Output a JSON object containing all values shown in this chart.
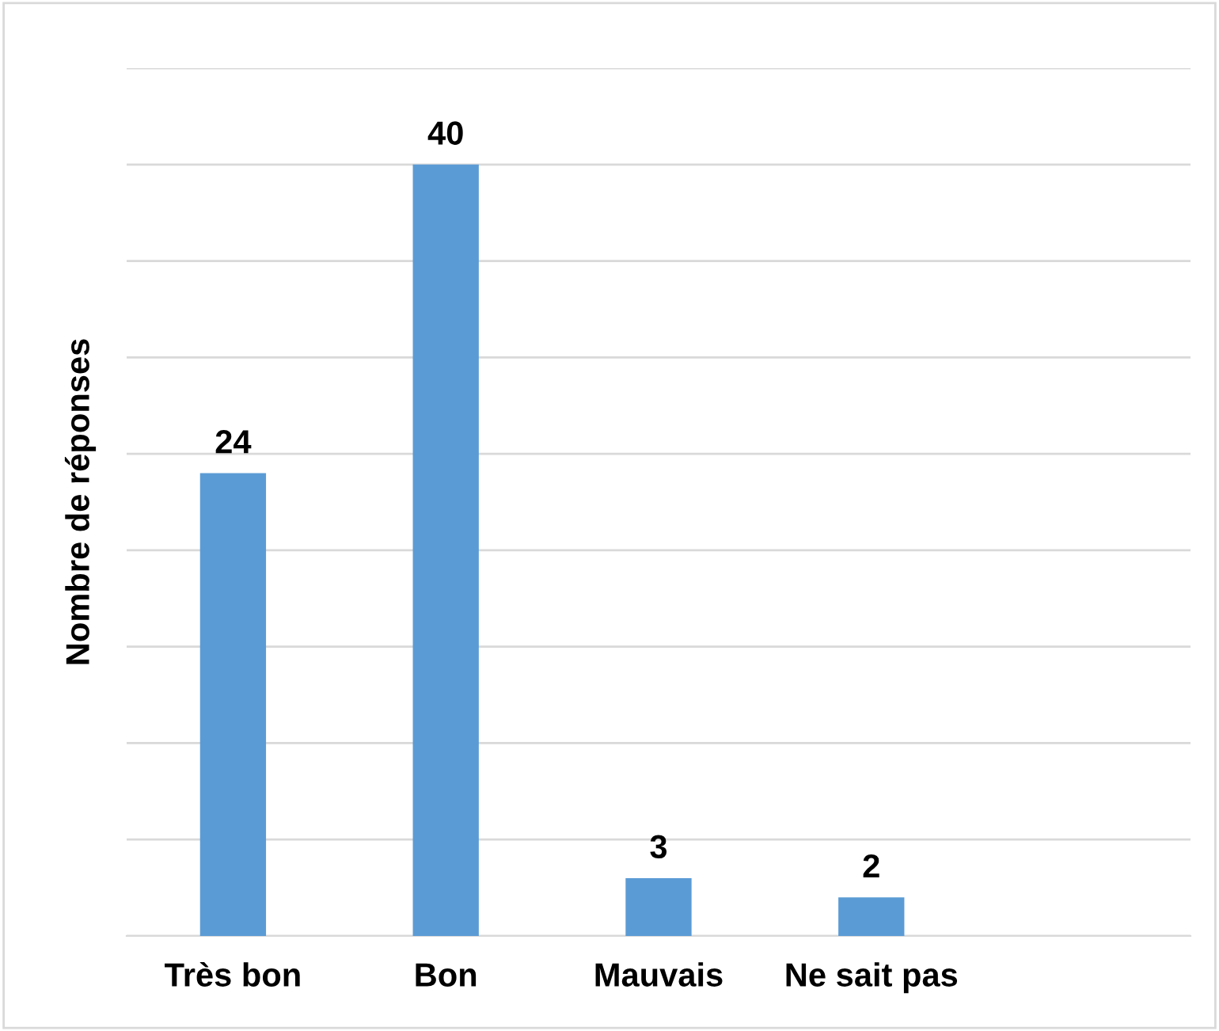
{
  "chart_data": {
    "type": "bar",
    "ylabel": "Nombre de réponses",
    "categories": [
      "Très bon",
      "Bon",
      "Mauvais",
      "Ne sait pas",
      null
    ],
    "values": [
      24,
      40,
      3,
      2,
      null
    ],
    "color": "#5b9bd5",
    "data_labels": true,
    "ylim": [
      0,
      45
    ],
    "yticks": [
      {
        "value": 0,
        "label": null
      },
      {
        "value": 5,
        "label": null
      },
      {
        "value": 10,
        "label": null
      },
      {
        "value": 15,
        "label": null
      },
      {
        "value": 20,
        "label": null
      },
      {
        "value": 25,
        "label": null
      },
      {
        "value": 30,
        "label": null
      },
      {
        "value": 35,
        "label": null
      },
      {
        "value": 40,
        "label": null
      },
      {
        "value": 45,
        "label": null
      }
    ],
    "tick_labels": "x",
    "grid": "y",
    "legend": false
  }
}
